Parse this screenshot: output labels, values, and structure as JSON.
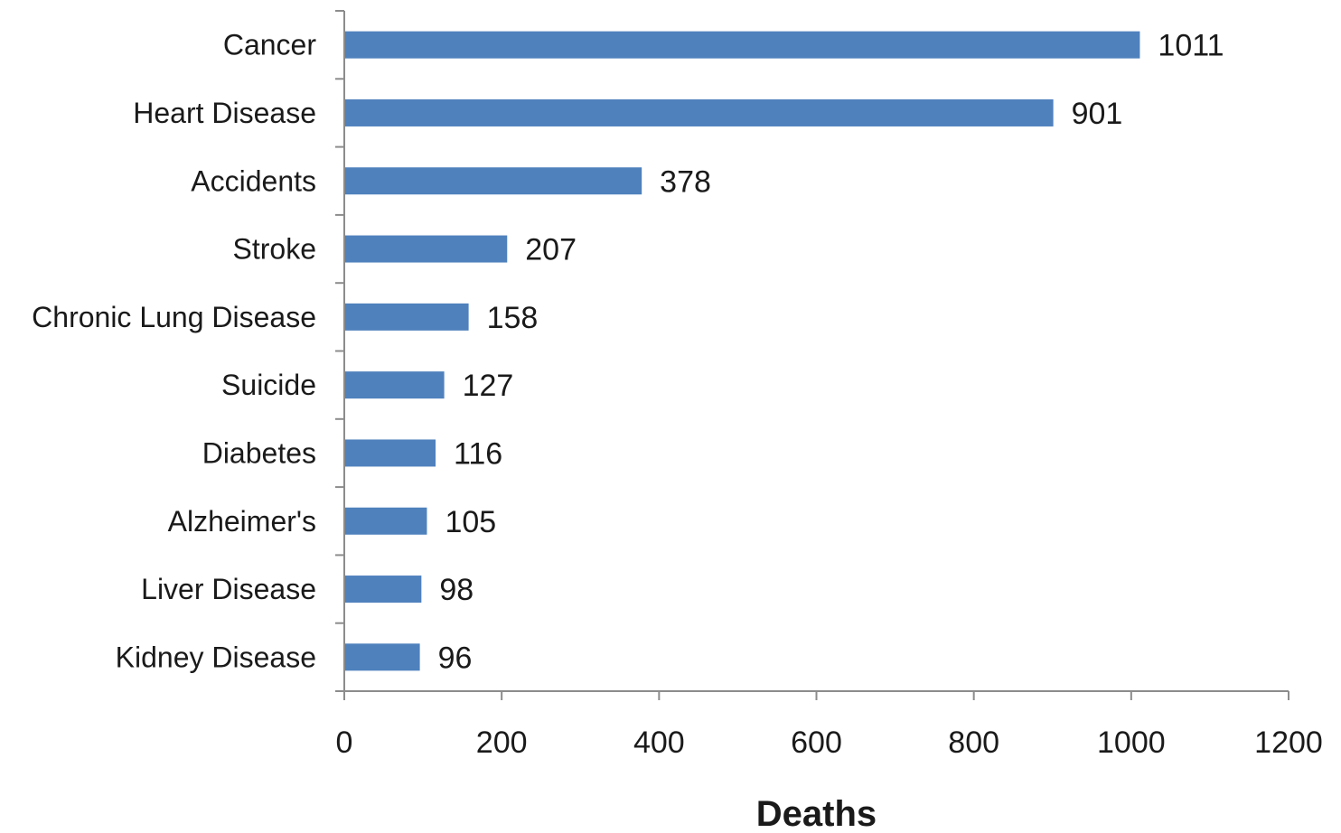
{
  "chart_data": {
    "type": "bar",
    "orientation": "horizontal",
    "categories": [
      "Cancer",
      "Heart Disease",
      "Accidents",
      "Stroke",
      "Chronic Lung Disease",
      "Suicide",
      "Diabetes",
      "Alzheimer's",
      "Liver Disease",
      "Kidney Disease"
    ],
    "values": [
      1011,
      901,
      378,
      207,
      158,
      127,
      116,
      105,
      98,
      96
    ],
    "data_labels": [
      "1011",
      "901",
      "378",
      "207",
      "158",
      "127",
      "116",
      "105",
      "98",
      "96"
    ],
    "xlabel": "Deaths",
    "ylabel": "",
    "title": "",
    "xlim": [
      0,
      1200
    ],
    "x_ticks": [
      0,
      200,
      400,
      600,
      800,
      1000,
      1200
    ],
    "grid": false,
    "legend": "none",
    "bar_color": "#4f81bd"
  }
}
